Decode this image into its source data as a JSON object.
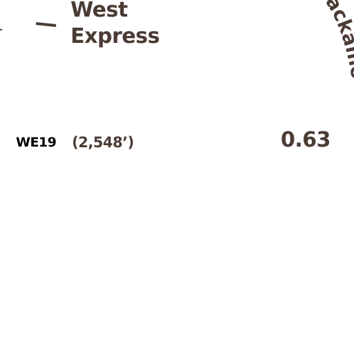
{
  "lift": {
    "name_line1": "West",
    "name_line2": "Express",
    "code": "WE19",
    "length": "(2,548’)",
    "value": "0.63"
  },
  "trail": {
    "name": "ackamore"
  },
  "colors": {
    "label_brown": "#4a3b34",
    "code_black": "#000000",
    "background": "#ffffff"
  }
}
